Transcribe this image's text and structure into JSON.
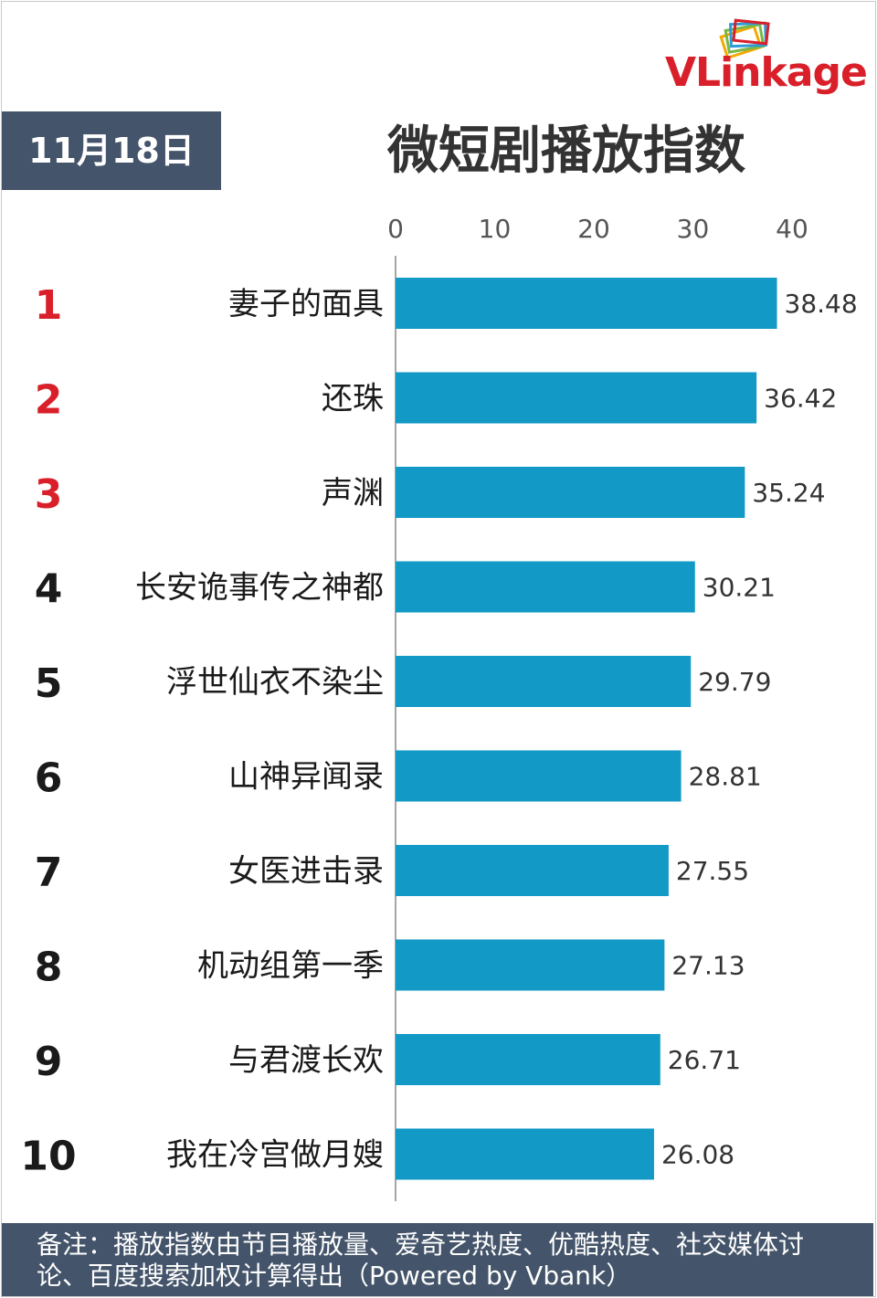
{
  "logo": {
    "text_v": "VL",
    "text_rest": "inkage"
  },
  "date": "11月18日",
  "title": "微短剧播放指数",
  "footer": {
    "line1": "备注：播放指数由节目播放量、爱奇艺热度、优酷热度、社交媒体讨",
    "line2": "论、百度搜索加权计算得出（Powered by Vbank）"
  },
  "colors": {
    "bar": "#1399c6",
    "rank_top": "#d9202a",
    "rank_other": "#1a1a1a",
    "header_bg": "#44546a"
  },
  "chart_data": {
    "type": "bar",
    "orientation": "horizontal",
    "title": "微短剧播放指数",
    "xlim": [
      0,
      40
    ],
    "x_ticks": [
      0,
      10,
      20,
      30,
      40
    ],
    "x_axis_position": "top",
    "grid": false,
    "ranks": [
      "1",
      "2",
      "3",
      "4",
      "5",
      "6",
      "7",
      "8",
      "9",
      "10"
    ],
    "categories": [
      "妻子的面具",
      "还珠",
      "声渊",
      "长安诡事传之神都",
      "浮世仙衣不染尘",
      "山神异闻录",
      "女医进击录",
      "机动组第一季",
      "与君渡长欢",
      "我在冷宫做月嫂"
    ],
    "values": [
      38.48,
      36.42,
      35.24,
      30.21,
      29.79,
      28.81,
      27.55,
      27.13,
      26.71,
      26.08
    ],
    "value_labels": [
      "38.48",
      "36.42",
      "35.24",
      "30.21",
      "29.79",
      "28.81",
      "27.55",
      "27.13",
      "26.71",
      "26.08"
    ]
  }
}
